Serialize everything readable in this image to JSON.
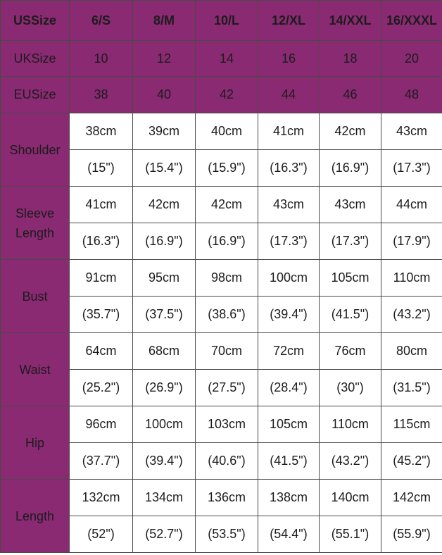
{
  "header": {
    "rows": [
      [
        "USSize",
        "6/S",
        "8/M",
        "10/L",
        "12/XL",
        "14/XXL",
        "16/XXXL"
      ],
      [
        "UKSize",
        "10",
        "12",
        "14",
        "16",
        "18",
        "20"
      ],
      [
        "EUSize",
        "38",
        "40",
        "42",
        "44",
        "46",
        "48"
      ]
    ]
  },
  "measurements": [
    {
      "label": "Shoulder",
      "cm": [
        "38cm",
        "39cm",
        "40cm",
        "41cm",
        "42cm",
        "43cm"
      ],
      "inch": [
        "(15\")",
        "(15.4\")",
        "(15.9\")",
        "(16.3\")",
        "(16.9\")",
        "(17.3\")"
      ]
    },
    {
      "label": "Sleeve Length",
      "cm": [
        "41cm",
        "42cm",
        "42cm",
        "43cm",
        "43cm",
        "44cm"
      ],
      "inch": [
        "(16.3\")",
        "(16.9\")",
        "(16.9\")",
        "(17.3\")",
        "(17.3\")",
        "(17.9\")"
      ]
    },
    {
      "label": "Bust",
      "cm": [
        "91cm",
        "95cm",
        "98cm",
        "100cm",
        "105cm",
        "110cm"
      ],
      "inch": [
        "(35.7\")",
        "(37.5\")",
        "(38.6\")",
        "(39.4\")",
        "(41.5\")",
        "(43.2\")"
      ]
    },
    {
      "label": "Waist",
      "cm": [
        "64cm",
        "68cm",
        "70cm",
        "72cm",
        "76cm",
        "80cm"
      ],
      "inch": [
        "(25.2\")",
        "(26.9\")",
        "(27.5\")",
        "(28.4\")",
        "(30\")",
        "(31.5\")"
      ]
    },
    {
      "label": "Hip",
      "cm": [
        "96cm",
        "100cm",
        "103cm",
        "105cm",
        "110cm",
        "115cm"
      ],
      "inch": [
        "(37.7\")",
        "(39.4\")",
        "(40.6\")",
        "(41.5\")",
        "(43.2\")",
        "(45.2\")"
      ]
    },
    {
      "label": "Length",
      "cm": [
        "132cm",
        "134cm",
        "136cm",
        "138cm",
        "140cm",
        "142cm"
      ],
      "inch": [
        "(52\")",
        "(52.7\")",
        "(53.5\")",
        "(54.4\")",
        "(55.1\")",
        "(55.9\")"
      ]
    }
  ]
}
